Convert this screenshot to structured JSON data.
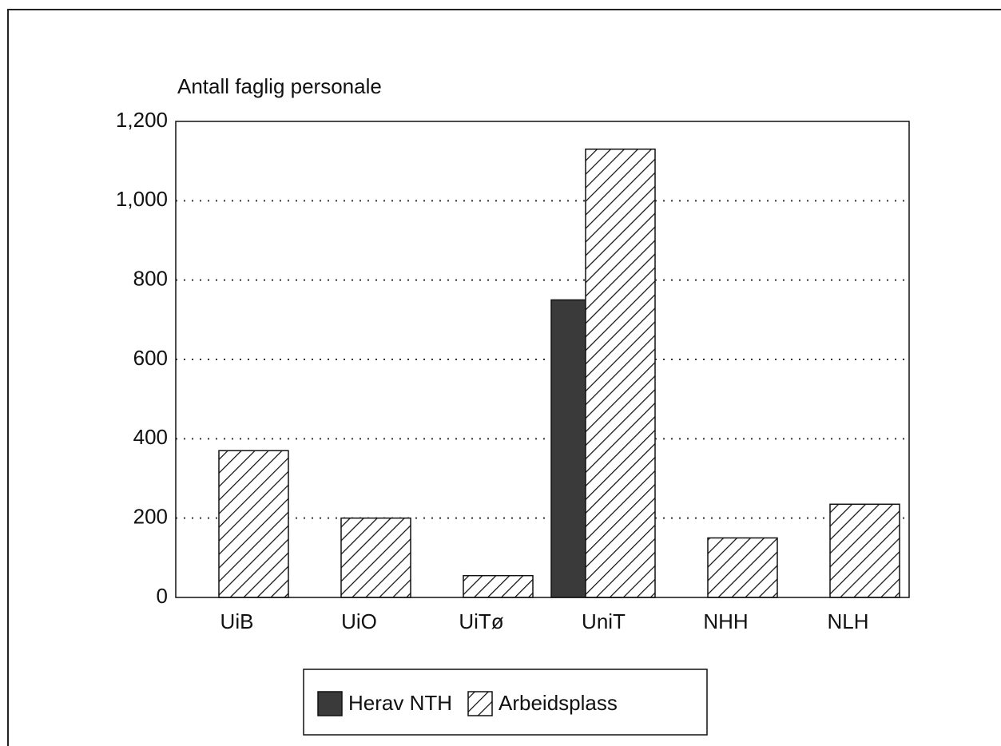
{
  "chart_data": {
    "type": "bar",
    "title": "Antall faglig personale",
    "categories": [
      "UiB",
      "UiO",
      "UiTø",
      "UniT",
      "NHH",
      "NLH"
    ],
    "series": [
      {
        "name": "Herav NTH",
        "color": "#3a3a3a",
        "values": [
          null,
          null,
          null,
          750,
          null,
          null
        ]
      },
      {
        "name": "Arbeidsplass",
        "color": "hatch",
        "values": [
          370,
          200,
          55,
          1130,
          150,
          235
        ]
      }
    ],
    "ylim": [
      0,
      1200
    ],
    "yticks": [
      0,
      200,
      400,
      600,
      800,
      1000,
      {
        "value": 1000,
        "label": "1,000"
      },
      {
        "value": 1200,
        "label": "1,200"
      }
    ],
    "grid": true,
    "legend": "bottom"
  }
}
